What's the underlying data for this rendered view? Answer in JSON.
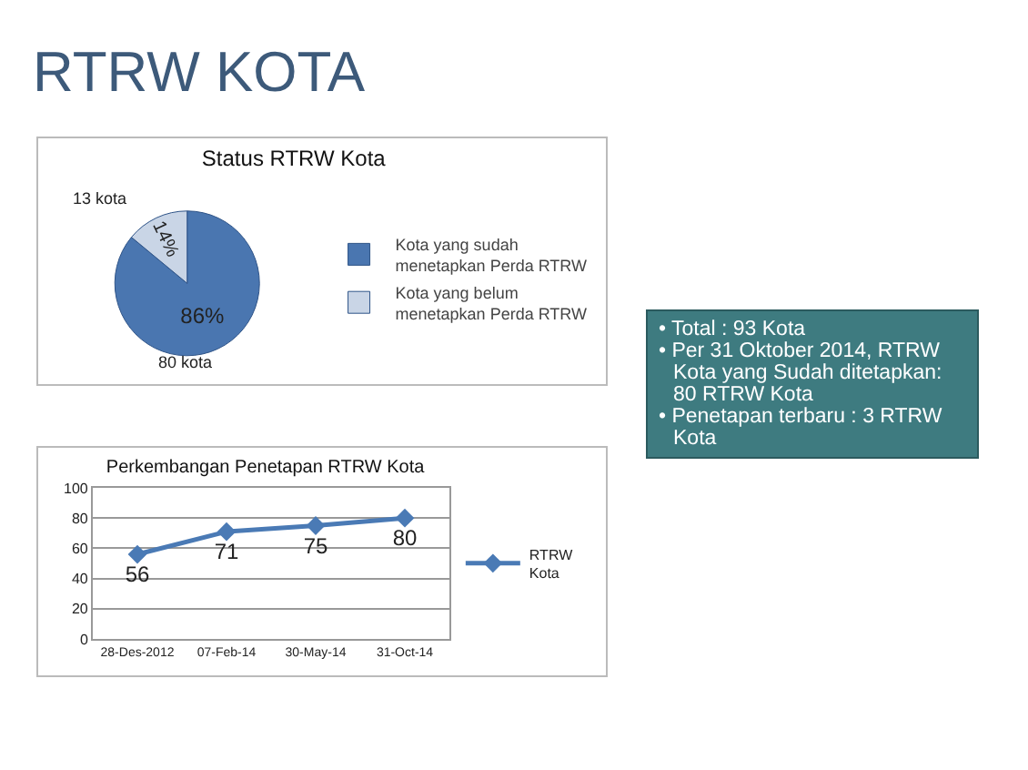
{
  "chart_data": [
    {
      "type": "pie",
      "title": "Status RTRW Kota",
      "categories": [
        "Kota yang sudah menetapkan Perda RTRW",
        "Kota yang belum menetapkan Perda RTRW"
      ],
      "values": [
        86,
        14
      ],
      "colors": [
        "#4a76b0",
        "#c9d5e6"
      ],
      "value_labels": [
        "86%",
        "14%"
      ],
      "annotations": [
        "80 kota",
        "13 kota"
      ],
      "legend": "right"
    },
    {
      "type": "line",
      "title": "Perkembangan Penetapan RTRW Kota",
      "categories": [
        "28-Des-2012",
        "07-Feb-14",
        "30-May-14",
        "31-Oct-14"
      ],
      "series": [
        {
          "name": "RTRW Kota",
          "color": "#4a7ab5",
          "values": [
            56,
            71,
            75,
            80
          ]
        }
      ],
      "ylim": [
        0,
        100
      ],
      "yticks": [
        0,
        20,
        40,
        60,
        80,
        100
      ],
      "grid": "y",
      "legend": "right",
      "marker": "diamond",
      "data_labels": true
    },
    {
      "type": "other",
      "title": "RTRW KOTA",
      "annotations": [
        "• Total : 93 Kota",
        "• Per  31 Oktober 2014, RTRW Kota yang  Sudah ditetapkan: 80 RTRW Kota",
        "• Penetapan terbaru : 3 RTRW Kota"
      ]
    }
  ]
}
